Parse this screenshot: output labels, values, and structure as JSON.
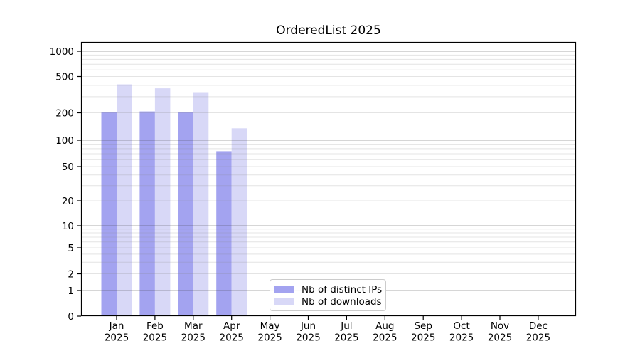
{
  "chart_data": {
    "type": "bar",
    "title": "OrderedList 2025",
    "categories": [
      "Jan 2025",
      "Feb 2025",
      "Mar 2025",
      "Apr 2025",
      "May 2025",
      "Jun 2025",
      "Jul 2025",
      "Aug 2025",
      "Sep 2025",
      "Oct 2025",
      "Nov 2025",
      "Dec 2025"
    ],
    "series": [
      {
        "name": "Nb of distinct IPs",
        "color": "#a3a3f0",
        "values": [
          204,
          207,
          204,
          75,
          0,
          0,
          0,
          0,
          0,
          0,
          0,
          0
        ]
      },
      {
        "name": "Nb of downloads",
        "color": "#d8d8f7",
        "values": [
          410,
          371,
          337,
          135,
          0,
          0,
          0,
          0,
          0,
          0,
          0,
          0
        ]
      }
    ],
    "xlabel": "",
    "ylabel": "",
    "yscale": "symlog (log above 1, linear 0-1)",
    "yticks": [
      0,
      1,
      2,
      5,
      10,
      20,
      50,
      100,
      200,
      500,
      1000
    ],
    "ylim": [
      0,
      1300
    ],
    "grid": "horizontal, major lines at powers of 10 darker, minor log subdivisions lighter, drawn over bars",
    "legend_position": "inside bottom-center",
    "tick_label_color": "#000000",
    "spine_color": "#000000"
  }
}
